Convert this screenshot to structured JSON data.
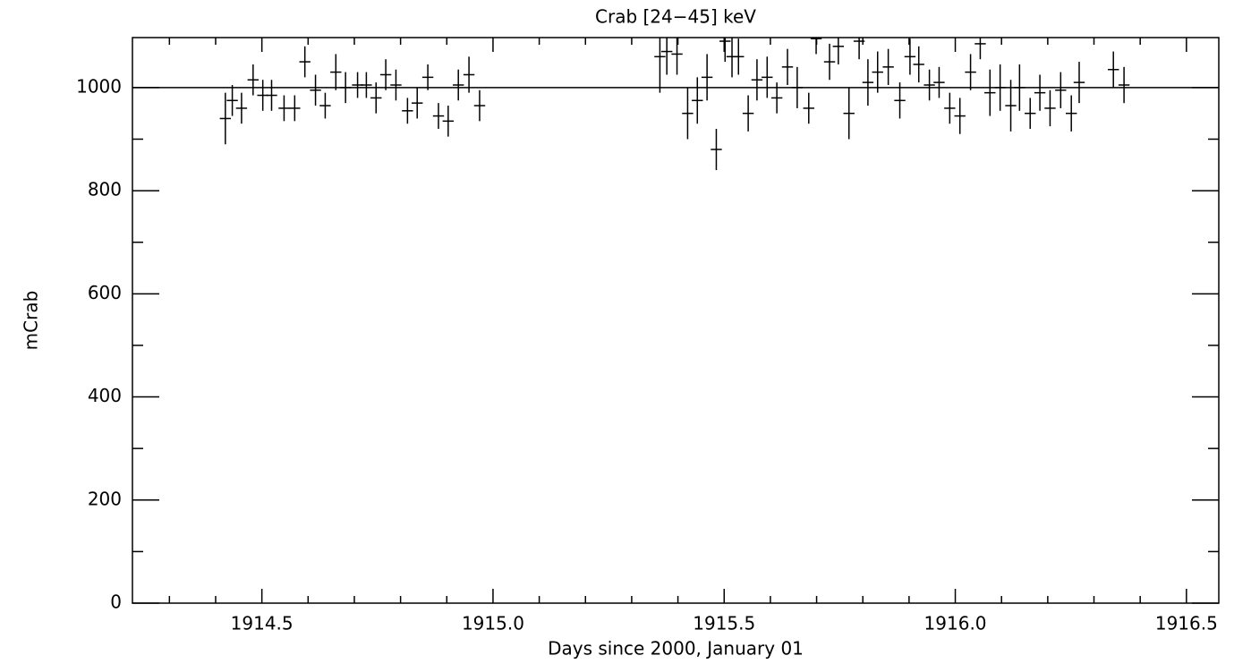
{
  "chart_data": {
    "type": "scatter",
    "title": "Crab [24−45] keV",
    "xlabel": "Days since 2000, January 01",
    "ylabel": "mCrab",
    "xlim": [
      1914.22,
      1916.57
    ],
    "ylim": [
      0,
      1097
    ],
    "xticks": [
      1914.5,
      {
        "value": 1915,
        "label": "1915.0"
      },
      1915.5,
      {
        "value": 1916,
        "label": "1916.0"
      },
      1916.5
    ],
    "xminorticks": [
      1914.3,
      1914.4,
      1914.6,
      1914.7,
      1914.8,
      1914.9,
      1915.1,
      1915.2,
      1915.3,
      1915.4,
      1915.6,
      1915.7,
      1915.8,
      1915.9,
      1916.1,
      1916.2,
      1916.3,
      1916.4
    ],
    "yticks": [
      0,
      200,
      400,
      600,
      800,
      1000
    ],
    "yminorticks": [
      100,
      300,
      500,
      700,
      900
    ],
    "hline": 1000,
    "color": "#000000",
    "xerr": 0.012,
    "x": [
      1914.421,
      1914.436,
      1914.456,
      1914.481,
      1914.502,
      1914.521,
      1914.548,
      1914.571,
      1914.593,
      1914.616,
      1914.637,
      1914.66,
      1914.681,
      1914.707,
      1914.726,
      1914.747,
      1914.768,
      1914.79,
      1914.815,
      1914.836,
      1914.859,
      1914.882,
      1914.903,
      1914.925,
      1914.948,
      1914.971,
      1915.361,
      1915.376,
      1915.398,
      1915.421,
      1915.442,
      1915.463,
      1915.483,
      1915.502,
      1915.517,
      1915.531,
      1915.552,
      1915.571,
      1915.593,
      1915.614,
      1915.637,
      1915.658,
      1915.683,
      1915.699,
      1915.728,
      1915.747,
      1915.77,
      1915.792,
      1915.811,
      1915.832,
      1915.855,
      1915.88,
      1915.902,
      1915.921,
      1915.944,
      1915.965,
      1915.988,
      1916.01,
      1916.033,
      1916.054,
      1916.075,
      1916.097,
      1916.12,
      1916.139,
      1916.162,
      1916.183,
      1916.205,
      1916.228,
      1916.251,
      1916.268,
      1916.342,
      1916.365
    ],
    "values": [
      940,
      975,
      960,
      1015,
      985,
      985,
      960,
      960,
      1050,
      995,
      965,
      1030,
      1000,
      1005,
      1005,
      980,
      1025,
      1005,
      955,
      970,
      1020,
      945,
      935,
      1005,
      1025,
      965,
      1060,
      1070,
      1065,
      950,
      975,
      1020,
      880,
      1090,
      1060,
      1060,
      950,
      1015,
      1020,
      980,
      1040,
      1000,
      960,
      1095,
      1050,
      1080,
      950,
      1090,
      1010,
      1030,
      1040,
      975,
      1060,
      1045,
      1005,
      1010,
      960,
      945,
      1030,
      1085,
      990,
      1000,
      965,
      1000,
      950,
      990,
      960,
      995,
      950,
      1010,
      1035,
      1005
    ],
    "errors": [
      50,
      30,
      30,
      30,
      30,
      30,
      25,
      25,
      30,
      30,
      25,
      35,
      30,
      25,
      25,
      30,
      30,
      30,
      25,
      30,
      25,
      25,
      30,
      30,
      35,
      30,
      70,
      45,
      40,
      50,
      45,
      45,
      40,
      40,
      40,
      35,
      35,
      40,
      40,
      30,
      35,
      40,
      30,
      30,
      35,
      35,
      50,
      35,
      45,
      40,
      35,
      35,
      35,
      35,
      30,
      30,
      30,
      35,
      35,
      30,
      45,
      45,
      50,
      45,
      30,
      35,
      35,
      35,
      35,
      40,
      35,
      35
    ]
  }
}
